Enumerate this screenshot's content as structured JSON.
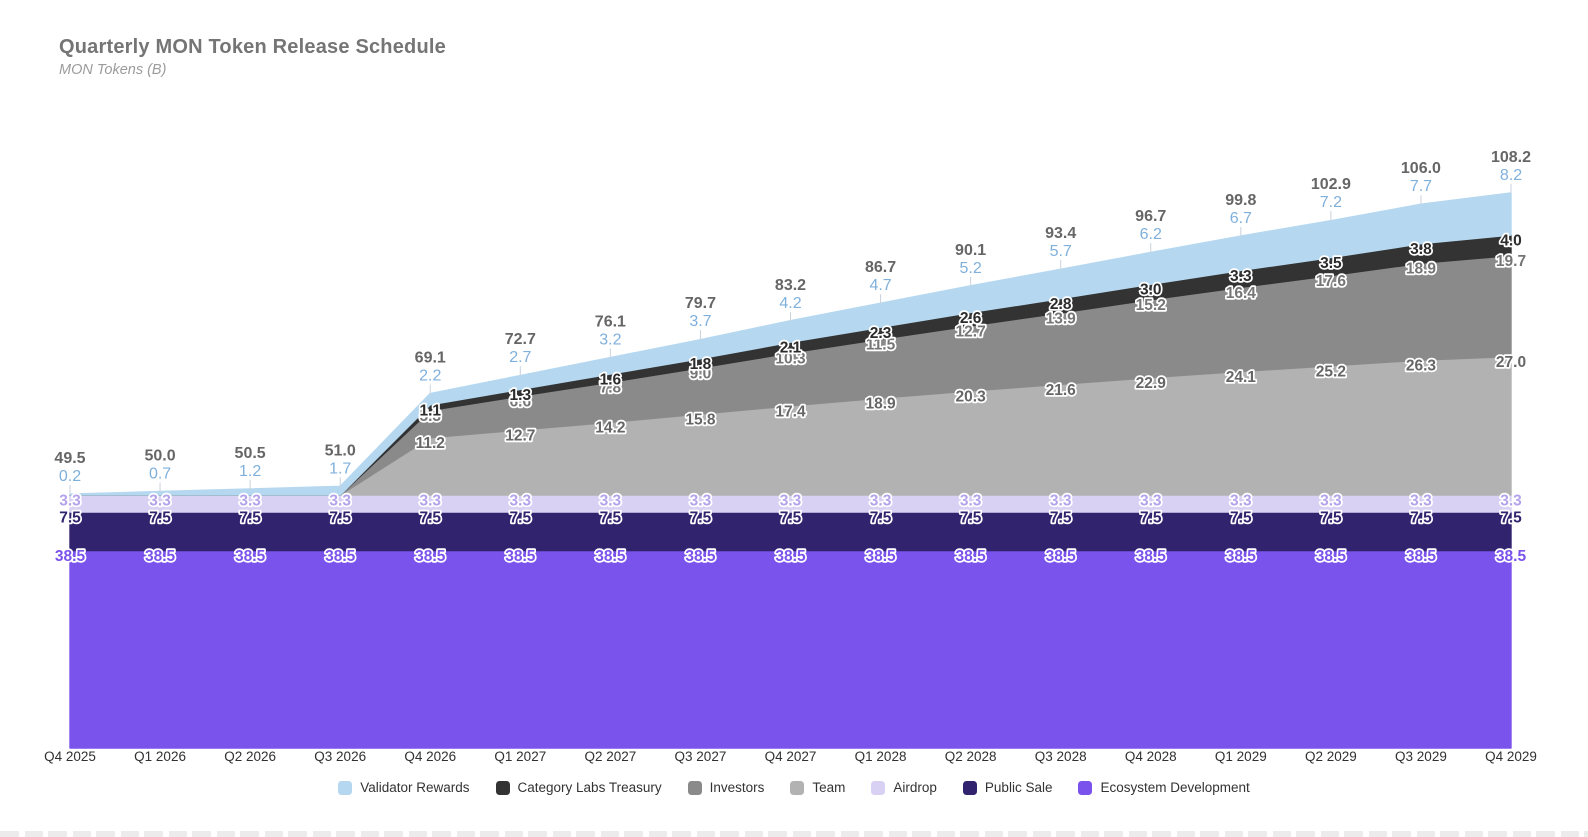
{
  "title": "Quarterly MON Token Release Schedule",
  "subtitle": "MON Tokens (B)",
  "chart_data": {
    "type": "area",
    "stacked": true,
    "title": "Quarterly MON Token Release Schedule",
    "ylabel": "MON Tokens (B)",
    "xlabel": "",
    "grid": false,
    "legend_position": "bottom",
    "ylim": [
      0,
      115
    ],
    "categories": [
      "Q4 2025",
      "Q1 2026",
      "Q2 2026",
      "Q3 2026",
      "Q4 2026",
      "Q1 2027",
      "Q2 2027",
      "Q3 2027",
      "Q4 2027",
      "Q1 2028",
      "Q2 2028",
      "Q3 2028",
      "Q4 2028",
      "Q1 2029",
      "Q2 2029",
      "Q3 2029",
      "Q4 2029"
    ],
    "series": [
      {
        "name": "Ecosystem Development",
        "color": "#7a52ec",
        "label_color": "#7a52ec",
        "values": [
          38.5,
          38.5,
          38.5,
          38.5,
          38.5,
          38.5,
          38.5,
          38.5,
          38.5,
          38.5,
          38.5,
          38.5,
          38.5,
          38.5,
          38.5,
          38.5,
          38.5
        ]
      },
      {
        "name": "Public Sale",
        "color": "#32236f",
        "label_color": "#32236f",
        "values": [
          7.5,
          7.5,
          7.5,
          7.5,
          7.5,
          7.5,
          7.5,
          7.5,
          7.5,
          7.5,
          7.5,
          7.5,
          7.5,
          7.5,
          7.5,
          7.5,
          7.5
        ]
      },
      {
        "name": "Airdrop",
        "color": "#d9d1f4",
        "label_color": "#b4a3ea",
        "values": [
          3.3,
          3.3,
          3.3,
          3.3,
          3.3,
          3.3,
          3.3,
          3.3,
          3.3,
          3.3,
          3.3,
          3.3,
          3.3,
          3.3,
          3.3,
          3.3,
          3.3
        ]
      },
      {
        "name": "Team",
        "color": "#b2b2b2",
        "label_color": "#666666",
        "values": [
          0,
          0,
          0,
          0,
          11.2,
          12.7,
          14.2,
          15.8,
          17.4,
          18.9,
          20.3,
          21.6,
          22.9,
          24.1,
          25.2,
          26.3,
          27.0
        ]
      },
      {
        "name": "Investors",
        "color": "#8a8a8a",
        "label_color": "#757575",
        "values": [
          0,
          0,
          0,
          0,
          5.3,
          6.6,
          7.8,
          9.0,
          10.3,
          11.5,
          12.7,
          13.9,
          15.2,
          16.4,
          17.6,
          18.9,
          19.7
        ]
      },
      {
        "name": "Category Labs Treasury",
        "color": "#333333",
        "label_color": "#2b2b2b",
        "values": [
          0,
          0,
          0,
          0,
          1.1,
          1.3,
          1.6,
          1.8,
          2.1,
          2.3,
          2.6,
          2.8,
          3.0,
          3.3,
          3.5,
          3.8,
          4.0
        ]
      },
      {
        "name": "Validator Rewards",
        "color": "#b5d8f0",
        "label_color": "#7fb0dc",
        "label_style": "above",
        "values": [
          0.2,
          0.7,
          1.2,
          1.7,
          2.2,
          2.7,
          3.2,
          3.7,
          4.2,
          4.7,
          5.2,
          5.7,
          6.2,
          6.7,
          7.2,
          7.7,
          8.2
        ]
      }
    ],
    "totals": [
      49.5,
      50.0,
      50.5,
      51.0,
      69.1,
      72.7,
      76.1,
      79.7,
      83.2,
      86.7,
      90.1,
      93.4,
      96.7,
      99.8,
      102.9,
      106.0,
      108.2
    ],
    "totals_color": "#666666",
    "leader_line_color": "#c9d2dd"
  }
}
